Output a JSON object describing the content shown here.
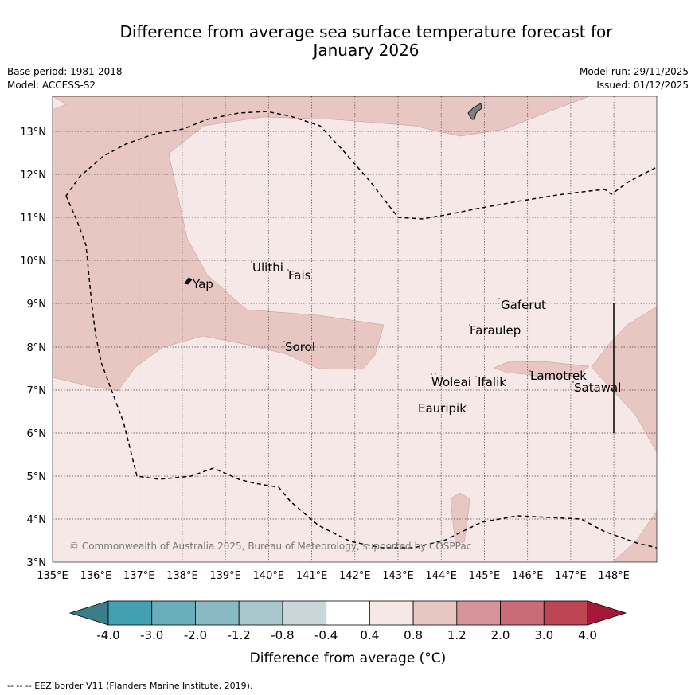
{
  "title": {
    "line1": "Difference from average sea surface temperature forecast for",
    "line2": "January 2026"
  },
  "meta": {
    "base_period": "Base period: 1981-2018",
    "model": "Model: ACCESS-S2",
    "model_run": "Model run: 29/11/2025",
    "issued": "Issued: 01/12/2025"
  },
  "map": {
    "lon_ticks": [
      "135°E",
      "136°E",
      "137°E",
      "138°E",
      "139°E",
      "140°E",
      "141°E",
      "142°E",
      "143°E",
      "144°E",
      "145°E",
      "146°E",
      "147°E",
      "148°E"
    ],
    "lat_ticks": [
      "3°N",
      "4°N",
      "5°N",
      "6°N",
      "7°N",
      "8°N",
      "9°N",
      "10°N",
      "11°N",
      "12°N",
      "13°N"
    ],
    "copyright": "© Commonwealth of Australia 2025, Bureau of Meteorology, supported by COSPPac",
    "places": [
      {
        "id": "yap",
        "name": "Yap"
      },
      {
        "id": "ulithi",
        "name": "Ulithi"
      },
      {
        "id": "fais",
        "name": "Fais"
      },
      {
        "id": "gaferut",
        "name": "Gaferut"
      },
      {
        "id": "faraulep",
        "name": "Faraulep"
      },
      {
        "id": "sorol",
        "name": "Sorol"
      },
      {
        "id": "lamotrek",
        "name": "Lamotrek"
      },
      {
        "id": "woleai",
        "name": "Woleai"
      },
      {
        "id": "ifalik",
        "name": "Ifalik"
      },
      {
        "id": "satawal",
        "name": "Satawal"
      },
      {
        "id": "eauripik",
        "name": "Eauripik"
      }
    ],
    "colors": {
      "anomaly_04_08": "#f5e8e6",
      "anomaly_08_12": "#e8c7c3",
      "land": "#7f7f7f"
    }
  },
  "colorbar": {
    "labels": [
      "-4.0",
      "-3.0",
      "-2.0",
      "-1.2",
      "-0.8",
      "-0.4",
      "0.4",
      "0.8",
      "1.2",
      "2.0",
      "3.0",
      "4.0"
    ],
    "colors": [
      "#43a0b2",
      "#6aaebc",
      "#89b9c3",
      "#a8c8ce",
      "#c9d7da",
      "#ffffff",
      "#f5e8e6",
      "#e8c7c3",
      "#d7939a",
      "#ca6c77",
      "#bd4554"
    ],
    "under_color": "#3c7e87",
    "over_color": "#a5183a",
    "label": "Difference from average (°C)"
  },
  "footer": {
    "legend": "--  --  -- EEZ border V11 (Flanders Marine Institute, 2019)."
  }
}
